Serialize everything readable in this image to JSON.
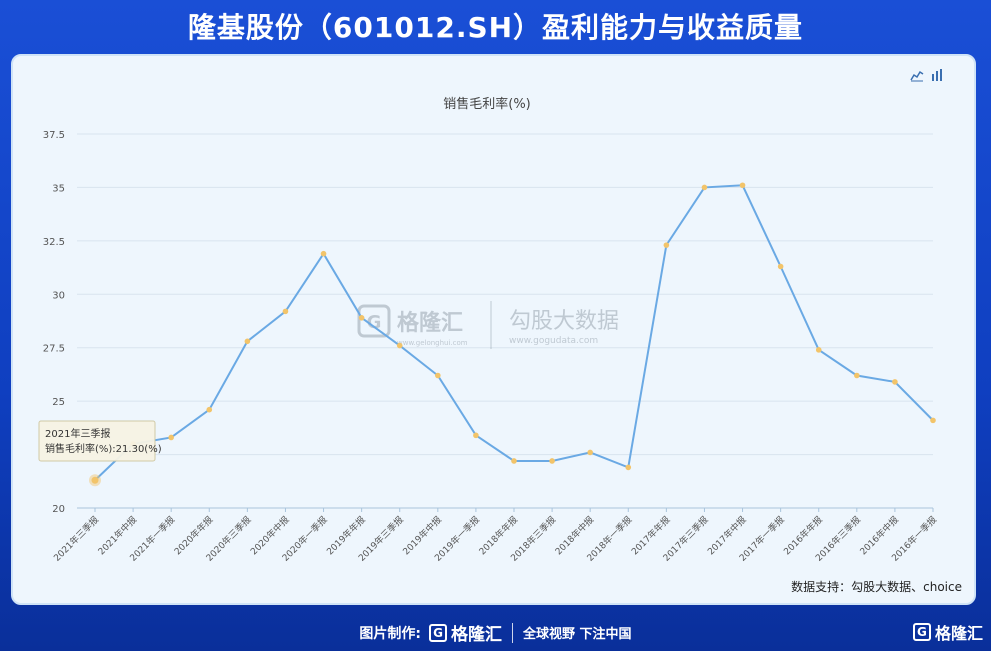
{
  "header": {
    "title": "隆基股份（601012.SH）盈利能力与收益质量"
  },
  "toolbar": {
    "icons": [
      "line-chart-icon",
      "bar-chart-icon"
    ]
  },
  "watermark": {
    "brand": "格隆汇",
    "brand_url": "www.gelonghui.com",
    "partner": "勾股大数据",
    "partner_url": "www.gogudata.com"
  },
  "tooltip": {
    "line1": "2021年三季报",
    "line2": "销售毛利率(%):21.30(%)"
  },
  "source": {
    "text": "数据支持：勾股大数据、choice"
  },
  "footer": {
    "label": "图片制作:",
    "brand": "格隆汇",
    "slogan": "全球视野 下注中国",
    "corner_brand": "格隆汇"
  },
  "colors": {
    "line": "#6aa9e4",
    "point": "#f2c46a",
    "grid": "#d8e4ee",
    "axis": "#a9c4dc"
  },
  "chart_data": {
    "type": "line",
    "title": "销售毛利率(%)",
    "xlabel": "",
    "ylabel": "",
    "ylim": [
      20,
      37.5
    ],
    "yticks": [
      20,
      22.5,
      25,
      27.5,
      30,
      32.5,
      35,
      37.5
    ],
    "ytick_labels": [
      "20",
      "",
      "25",
      "27.5",
      "30",
      "32.5",
      "35",
      "37.5"
    ],
    "grid": true,
    "categories": [
      "2021年三季报",
      "2021年中报",
      "2021年一季报",
      "2020年年报",
      "2020年三季报",
      "2020年中报",
      "2020年一季报",
      "2019年年报",
      "2019年三季报",
      "2019年中报",
      "2019年一季报",
      "2018年年报",
      "2018年三季报",
      "2018年中报",
      "2018年一季报",
      "2017年年报",
      "2017年三季报",
      "2017年中报",
      "2017年一季报",
      "2016年年报",
      "2016年三季报",
      "2016年中报",
      "2016年一季报"
    ],
    "series": [
      {
        "values": [
          21.3,
          23.0,
          23.3,
          24.6,
          27.8,
          29.2,
          31.9,
          28.9,
          27.6,
          26.2,
          23.4,
          22.2,
          22.2,
          22.6,
          21.9,
          32.3,
          35.0,
          35.1,
          31.3,
          27.4,
          26.2,
          25.9,
          24.1
        ]
      }
    ]
  }
}
